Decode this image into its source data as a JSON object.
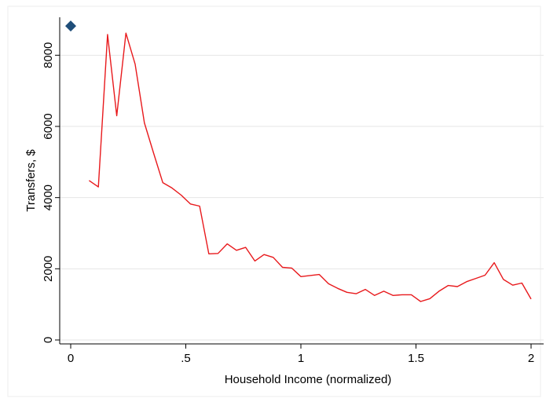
{
  "chart_data": {
    "type": "line",
    "xlabel": "Household Income (normalized)",
    "ylabel": "Transfers, $",
    "xlim": [
      0,
      2
    ],
    "ylim": [
      0,
      9000
    ],
    "grid": "horizontal",
    "x_ticks": [
      0,
      0.5,
      1,
      1.5,
      2
    ],
    "x_tick_labels": [
      "0",
      ".5",
      "1",
      "1.5",
      "2"
    ],
    "y_ticks": [
      0,
      2000,
      4000,
      6000,
      8000
    ],
    "y_tick_labels": [
      "0",
      "2000",
      "4000",
      "6000",
      "8000"
    ],
    "series": [
      {
        "color": "#e8191c",
        "x": [
          0.08,
          0.12,
          0.16,
          0.2,
          0.24,
          0.28,
          0.32,
          0.36,
          0.4,
          0.44,
          0.48,
          0.52,
          0.56,
          0.6,
          0.64,
          0.68,
          0.72,
          0.76,
          0.8,
          0.84,
          0.88,
          0.92,
          0.96,
          1.0,
          1.04,
          1.08,
          1.12,
          1.16,
          1.2,
          1.24,
          1.28,
          1.32,
          1.36,
          1.4,
          1.44,
          1.48,
          1.52,
          1.56,
          1.6,
          1.64,
          1.68,
          1.72,
          1.76,
          1.8,
          1.84,
          1.88,
          1.92,
          1.96,
          2.0
        ],
        "y": [
          4480,
          4300,
          8580,
          6300,
          8620,
          7750,
          6100,
          5250,
          4420,
          4270,
          4070,
          3820,
          3760,
          2420,
          2430,
          2700,
          2520,
          2600,
          2220,
          2400,
          2320,
          2040,
          2020,
          1780,
          1810,
          1840,
          1580,
          1450,
          1340,
          1300,
          1420,
          1250,
          1370,
          1250,
          1270,
          1270,
          1080,
          1160,
          1370,
          1530,
          1500,
          1640,
          1730,
          1820,
          2170,
          1700,
          1540,
          1600,
          1150
        ]
      }
    ],
    "markers": [
      {
        "shape": "diamond",
        "color": "#1f4e79",
        "x": 0,
        "y": 8820
      }
    ]
  }
}
